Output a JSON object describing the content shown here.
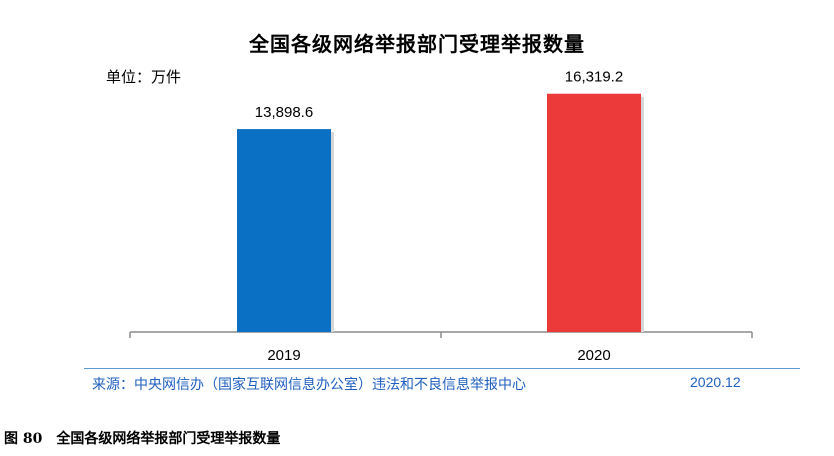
{
  "chart_data": {
    "type": "bar",
    "title": "全国各级网络举报部门受理举报数量",
    "unit_label": "单位：万件",
    "categories": [
      "2019",
      "2020"
    ],
    "values": [
      13898.6,
      16319.2
    ],
    "value_labels": [
      "13,898.6",
      "16,319.2"
    ],
    "colors": [
      "#0a70c4",
      "#ec3a3b"
    ],
    "ylim": [
      0,
      20000
    ],
    "grid": false
  },
  "source": {
    "text": "来源：中央网信办（国家互联网信息办公室）违法和不良信息举报中心",
    "date": "2020.12"
  },
  "caption": {
    "figure_number": "图 80",
    "text": "全国各级网络举报部门受理举报数量"
  }
}
